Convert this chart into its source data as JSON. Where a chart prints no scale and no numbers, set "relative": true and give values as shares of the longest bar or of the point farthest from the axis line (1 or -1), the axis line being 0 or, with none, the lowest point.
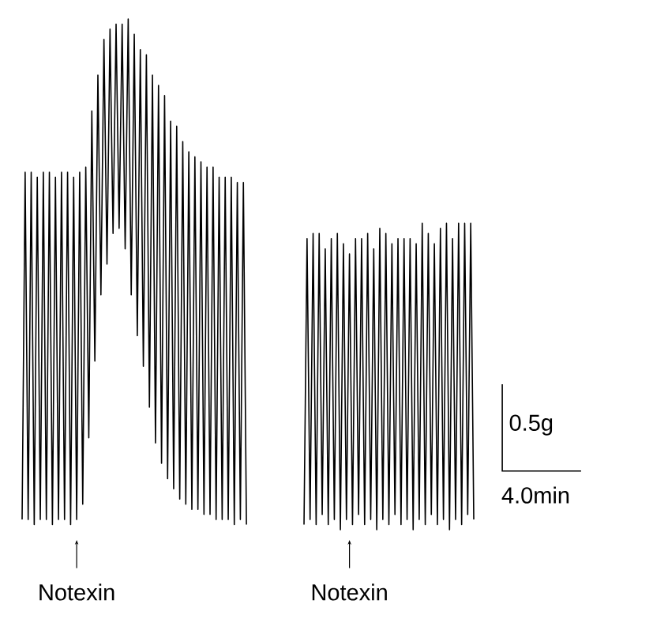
{
  "chart_data": {
    "type": "line",
    "relative": true,
    "categories": [
      null,
      null,
      null,
      null,
      null,
      null,
      null,
      null,
      null,
      null,
      null,
      null,
      null,
      null,
      null,
      null,
      null,
      null,
      null,
      null,
      null,
      null,
      null,
      null,
      null,
      null,
      null,
      null,
      null,
      null,
      null,
      null,
      null,
      null,
      null,
      null,
      null,
      null,
      null,
      null,
      null,
      null,
      null,
      null,
      null,
      null,
      null,
      null,
      null,
      null,
      null,
      null,
      null,
      null,
      null,
      null,
      null,
      null,
      null,
      null,
      null,
      null,
      null,
      null,
      null,
      null,
      null,
      null,
      null,
      null,
      null,
      null,
      null,
      null,
      null,
      null,
      null,
      null,
      null,
      null,
      null,
      null,
      null,
      null,
      null,
      null,
      null,
      null,
      null,
      null,
      null,
      null,
      null,
      null,
      null,
      null,
      null,
      null,
      null,
      null,
      null,
      null,
      null,
      null,
      null,
      null,
      null,
      null,
      null,
      null,
      null,
      null,
      null,
      null,
      null,
      null,
      null,
      null,
      null,
      null,
      null,
      null,
      null,
      null,
      null,
      null,
      null,
      null,
      null,
      null,
      null,
      null,
      null,
      null,
      null,
      null,
      null,
      null,
      null,
      null,
      null,
      null,
      null,
      null,
      null,
      null,
      null,
      null,
      null,
      null
    ],
    "series": [
      {
        "color": "#000000",
        "values": [
          0.02,
          0.7,
          0.02,
          0.7,
          0.01,
          0.69,
          0.02,
          0.7,
          0.02,
          0.7,
          0.01,
          0.69,
          0.02,
          0.7,
          0.02,
          0.7,
          0.01,
          0.69,
          0.02,
          0.7,
          0.05,
          0.71,
          0.18,
          0.82,
          0.33,
          0.89,
          0.46,
          0.96,
          0.52,
          0.98,
          0.58,
          0.99,
          0.59,
          0.99,
          0.55,
          1.0,
          0.46,
          0.97,
          0.38,
          0.94,
          0.32,
          0.93,
          0.24,
          0.89,
          0.17,
          0.87,
          0.13,
          0.85,
          0.1,
          0.8,
          0.08,
          0.79,
          0.06,
          0.76,
          0.05,
          0.74,
          0.04,
          0.73,
          0.04,
          0.72,
          0.03,
          0.71,
          0.03,
          0.71,
          0.02,
          0.69,
          0.02,
          0.69,
          0.02,
          0.69,
          0.01,
          0.68,
          0.02,
          0.68,
          0.01,
          null,
          null,
          null,
          null,
          null,
          null,
          null,
          null,
          null,
          null,
          null,
          null,
          null,
          null,
          null,
          null,
          null,
          null,
          null,
          null,
          null,
          null,
          null,
          null,
          null,
          null,
          null,
          null,
          null,
          null,
          null,
          null,
          null,
          null,
          null,
          null,
          null,
          null,
          null,
          null,
          null,
          null,
          null,
          null,
          null,
          null,
          null,
          null,
          null,
          null,
          null,
          null,
          null,
          null,
          null,
          null,
          null,
          null,
          null,
          null,
          null,
          null,
          null,
          null,
          null,
          null,
          null,
          null,
          null,
          null,
          null,
          null,
          null,
          null,
          null
        ]
      },
      {
        "color": "#000000",
        "values": [
          null,
          null,
          null,
          null,
          null,
          null,
          null,
          null,
          null,
          null,
          null,
          null,
          null,
          null,
          null,
          null,
          null,
          null,
          null,
          null,
          null,
          null,
          null,
          null,
          null,
          null,
          null,
          null,
          null,
          null,
          null,
          null,
          null,
          null,
          null,
          null,
          null,
          null,
          null,
          null,
          null,
          null,
          null,
          null,
          null,
          null,
          null,
          null,
          null,
          null,
          null,
          null,
          null,
          null,
          null,
          null,
          null,
          null,
          null,
          null,
          null,
          null,
          null,
          null,
          null,
          null,
          null,
          null,
          null,
          null,
          null,
          null,
          null,
          null,
          null,
          null,
          null,
          null,
          null,
          null,
          null,
          null,
          null,
          null,
          null,
          null,
          null,
          null,
          null,
          null,
          null,
          null,
          null,
          0.01,
          0.57,
          0.02,
          0.58,
          0.01,
          0.58,
          0.03,
          0.55,
          0.01,
          0.57,
          0.02,
          0.58,
          0,
          0.56,
          0.02,
          0.54,
          0.01,
          0.57,
          0.03,
          0.57,
          0.01,
          0.58,
          0.02,
          0.55,
          0,
          0.59,
          0.02,
          0.58,
          0.01,
          0.56,
          0.03,
          0.57,
          0.01,
          0.57,
          0.02,
          0.57,
          0,
          0.56,
          0.02,
          0.6,
          0.01,
          0.58,
          0.03,
          0.56,
          0.01,
          0.59,
          0.02,
          0.6,
          0,
          0.57,
          0.02,
          0.6,
          0.01,
          0.6,
          0.03,
          0.6,
          0.02
        ]
      }
    ],
    "annotations": [
      "Notexin",
      "Notexin",
      "0.5g",
      "4.0min"
    ]
  }
}
